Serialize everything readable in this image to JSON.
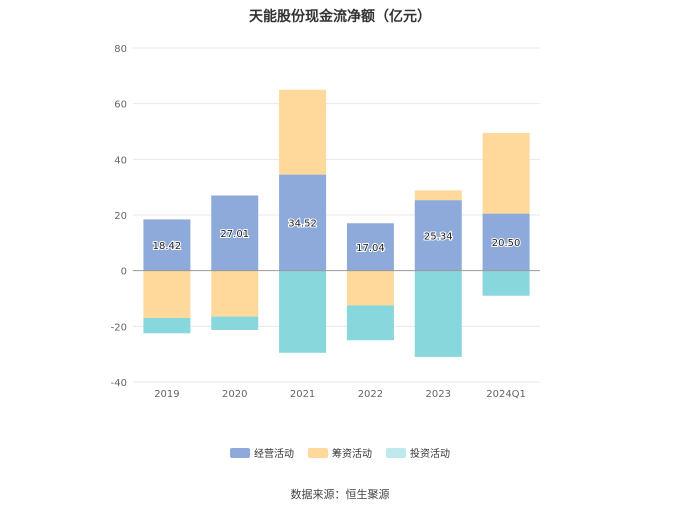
{
  "chart_data": {
    "type": "bar",
    "stacked": true,
    "title": "天能股份现金流净额（亿元）",
    "categories": [
      "2019",
      "2020",
      "2021",
      "2022",
      "2023",
      "2024Q1"
    ],
    "ylim": [
      -40,
      80
    ],
    "yticks": [
      80,
      60,
      40,
      20,
      0,
      -20,
      -40
    ],
    "grid": true,
    "legend_position": "bottom",
    "series": [
      {
        "name": "经营活动",
        "color": "#8eaadb",
        "values": [
          18.42,
          27.01,
          34.52,
          17.04,
          25.34,
          20.5
        ],
        "labels": [
          "18.42",
          "27.01",
          "34.52",
          "17.04",
          "25.34",
          "20.50"
        ]
      },
      {
        "name": "筹资活动",
        "color": "#ffd99c",
        "values": [
          -17,
          -16.5,
          30.5,
          -12.5,
          3.5,
          29
        ]
      },
      {
        "name": "投资活动",
        "color": "#87d7dc",
        "values": [
          -5.5,
          -4.8,
          -29.5,
          -12.5,
          -31,
          -9
        ]
      }
    ]
  },
  "source": "数据来源：恒生聚源"
}
